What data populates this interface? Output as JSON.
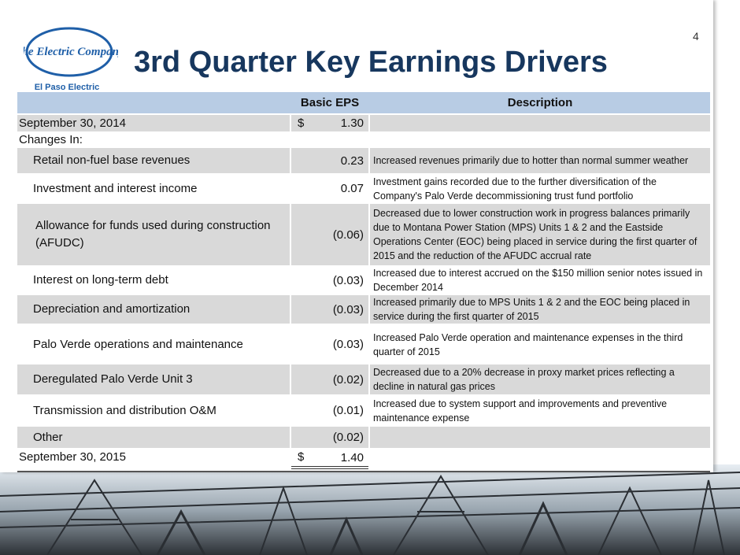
{
  "slide_number": "4",
  "title": "3rd Quarter Key Earnings Drivers",
  "logo": {
    "name": "The Electric Company",
    "tagline": "El Paso Electric"
  },
  "table": {
    "header": [
      "Basic EPS",
      "Description"
    ],
    "rows": [
      {
        "label": "September 30, 2014",
        "currency": "$",
        "eps": "1.30"
      },
      {
        "label": "Changes In:"
      },
      {
        "label": "Retail non-fuel base revenues",
        "eps": "0.23",
        "description": "Increased revenues primarily due to hotter than normal summer weather"
      },
      {
        "label": "Investment and interest income",
        "eps": "0.07",
        "description": "Investment gains recorded due to the further diversification of the Company's Palo Verde decommissioning trust fund portfolio"
      },
      {
        "label": "Allowance for funds used during construction (AFUDC)",
        "eps": "(0.06)",
        "description": "Decreased due to lower construction work in progress balances primarily due to Montana Power Station (MPS) Units 1 & 2 and the Eastside Operations Center (EOC) being placed in service during the first quarter of 2015 and the reduction of the AFUDC accrual rate"
      },
      {
        "label": "Interest on long-term debt",
        "eps": "(0.03)",
        "description": "Increased due to interest accrued on the $150 million senior notes issued in December 2014"
      },
      {
        "label": "Depreciation and amortization",
        "eps": "(0.03)",
        "description": "Increased primarily due to MPS Units 1 & 2 and the EOC being placed in service during the first quarter of 2015"
      },
      {
        "label": "Palo Verde operations and maintenance",
        "eps": "(0.03)",
        "description": "Increased Palo Verde operation and maintenance expenses in the third quarter of 2015"
      },
      {
        "label": "Deregulated Palo Verde Unit 3",
        "eps": "(0.02)",
        "description": "Decreased due to a 20% decrease in proxy market prices reflecting a decline in natural gas prices"
      },
      {
        "label": "Transmission and distribution O&M",
        "eps": "(0.01)",
        "description": "Increased due to system support and improvements and preventive maintenance expense"
      },
      {
        "label": "Other",
        "eps": "(0.02)"
      },
      {
        "label": "September 30, 2015",
        "currency": "$",
        "eps": "1.40"
      }
    ]
  }
}
